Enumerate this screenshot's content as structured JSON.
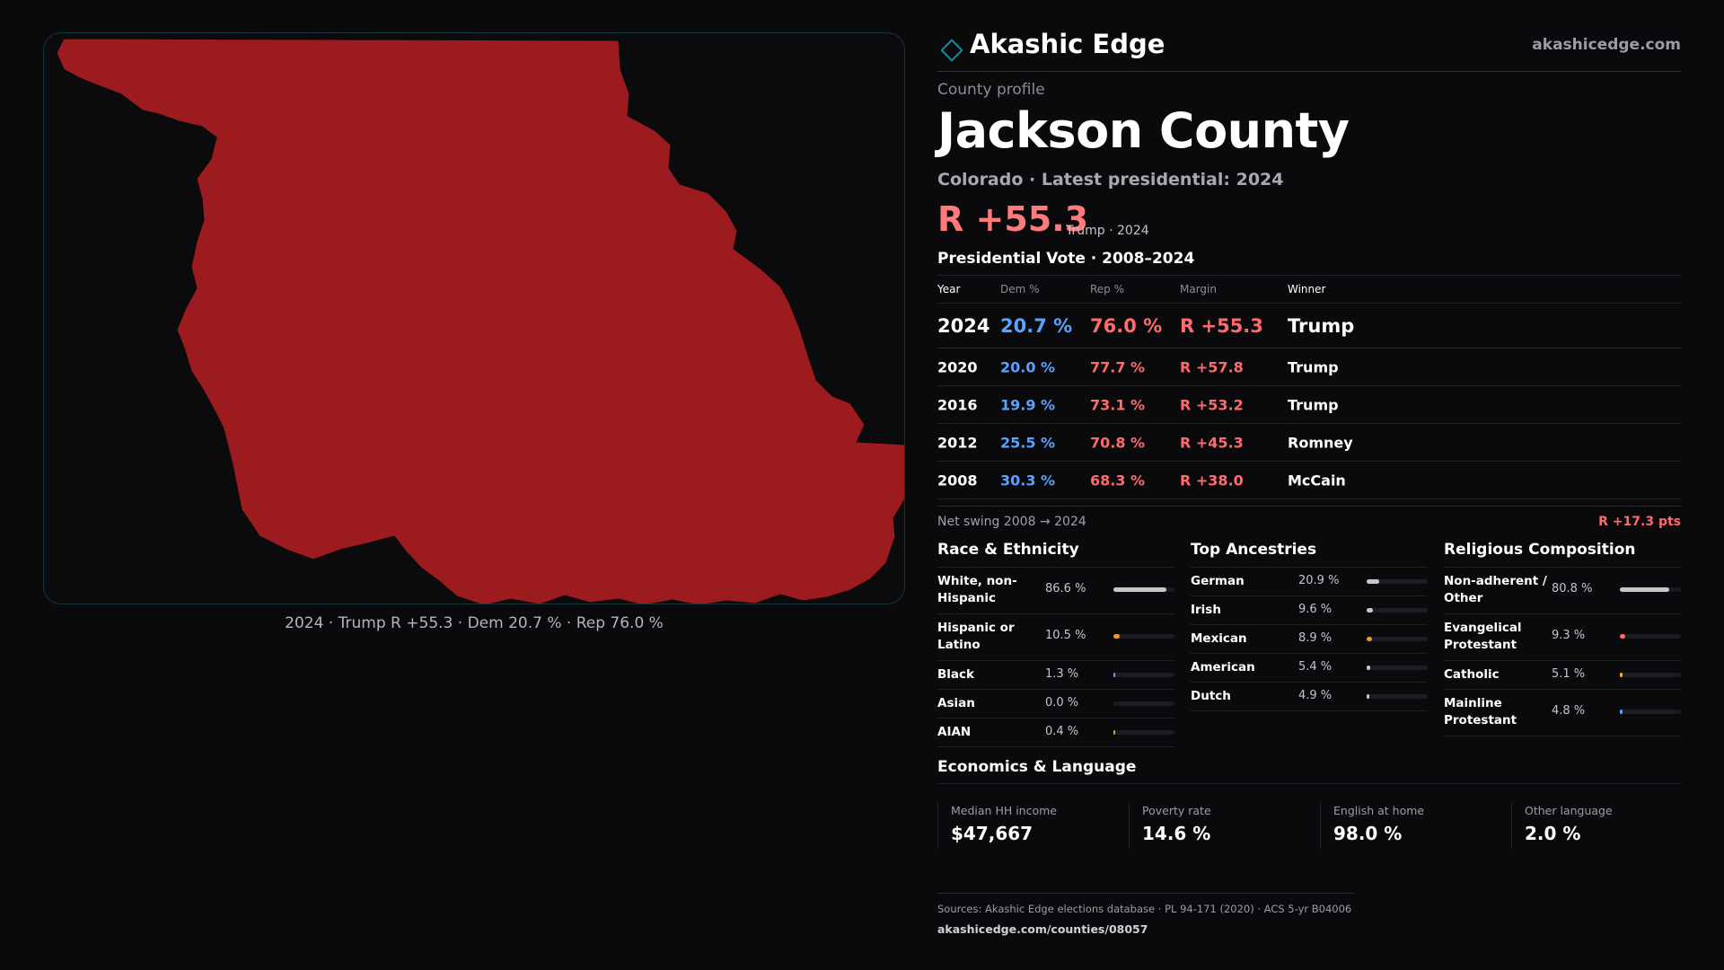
{
  "map": {
    "caption": "2024 · Trump R +55.3 · Dem 20.7 % · Rep 76.0 %",
    "fill_color": "#9b1b1f"
  },
  "brand": {
    "name": "Akashic Edge",
    "url": "akashicedge.com",
    "icon": "diamond-icon",
    "accent": "#1c8a96"
  },
  "profile": {
    "kicker": "County profile",
    "title": "Jackson County",
    "subtitle": "Colorado · Latest presidential: 2024",
    "margin": "R +55.3",
    "margin_note": "Trump · 2024"
  },
  "vote": {
    "title": "Presidential Vote · 2008–2024",
    "headers": {
      "year": "Year",
      "dem": "Dem %",
      "rep": "Rep %",
      "margin": "Margin",
      "winner": "Winner"
    },
    "rows": [
      {
        "year": "2024",
        "dem": "20.7 %",
        "rep": "76.0 %",
        "margin": "R +55.3",
        "winner": "Trump"
      },
      {
        "year": "2020",
        "dem": "20.0 %",
        "rep": "77.7 %",
        "margin": "R +57.8",
        "winner": "Trump"
      },
      {
        "year": "2016",
        "dem": "19.9 %",
        "rep": "73.1 %",
        "margin": "R +53.2",
        "winner": "Trump"
      },
      {
        "year": "2012",
        "dem": "25.5 %",
        "rep": "70.8 %",
        "margin": "R +45.3",
        "winner": "Romney"
      },
      {
        "year": "2008",
        "dem": "30.3 %",
        "rep": "68.3 %",
        "margin": "R +38.0",
        "winner": "McCain"
      }
    ],
    "swing_label": "Net swing 2008 → 2024",
    "swing_value": "R +17.3 pts"
  },
  "race": {
    "title": "Race & Ethnicity",
    "rows": [
      {
        "label": "White, non-Hispanic",
        "pct": "86.6 %",
        "value": 86.6,
        "color": "#c6c6cf"
      },
      {
        "label": "Hispanic or Latino",
        "pct": "10.5 %",
        "value": 10.5,
        "color": "#e59a2b"
      },
      {
        "label": "Black",
        "pct": "1.3 %",
        "value": 1.3,
        "color": "#5aa2ff"
      },
      {
        "label": "Asian",
        "pct": "0.0 %",
        "value": 0.0,
        "color": "#5aa2ff"
      },
      {
        "label": "AIAN",
        "pct": "0.4 %",
        "value": 0.4,
        "color": "#e59a2b"
      }
    ]
  },
  "ancestry": {
    "title": "Top Ancestries",
    "rows": [
      {
        "label": "German",
        "pct": "20.9 %",
        "value": 20.9,
        "color": "#c6c6cf"
      },
      {
        "label": "Irish",
        "pct": "9.6 %",
        "value": 9.6,
        "color": "#c6c6cf"
      },
      {
        "label": "Mexican",
        "pct": "8.9 %",
        "value": 8.9,
        "color": "#e59a2b"
      },
      {
        "label": "American",
        "pct": "5.4 %",
        "value": 5.4,
        "color": "#c6c6cf"
      },
      {
        "label": "Dutch",
        "pct": "4.9 %",
        "value": 4.9,
        "color": "#c6c6cf"
      }
    ]
  },
  "religion": {
    "title": "Religious Composition",
    "rows": [
      {
        "label": "Non-adherent / Other",
        "pct": "80.8 %",
        "value": 80.8,
        "color": "#c6c6cf"
      },
      {
        "label": "Evangelical Protestant",
        "pct": "9.3 %",
        "value": 9.3,
        "color": "#ff6b6b"
      },
      {
        "label": "Catholic",
        "pct": "5.1 %",
        "value": 5.1,
        "color": "#e5b82b"
      },
      {
        "label": "Mainline Protestant",
        "pct": "4.8 %",
        "value": 4.8,
        "color": "#5aa2ff"
      }
    ]
  },
  "economics": {
    "title": "Economics & Language",
    "items": [
      {
        "label": "Median HH income",
        "value": "$47,667"
      },
      {
        "label": "Poverty rate",
        "value": "14.6 %"
      },
      {
        "label": "English at home",
        "value": "98.0 %"
      },
      {
        "label": "Other language",
        "value": "2.0 %"
      }
    ]
  },
  "footer": {
    "sources": "Sources: Akashic Edge elections database · PL 94-171 (2020) · ACS 5-yr B04006",
    "url": "akashicedge.com/counties/08057"
  }
}
